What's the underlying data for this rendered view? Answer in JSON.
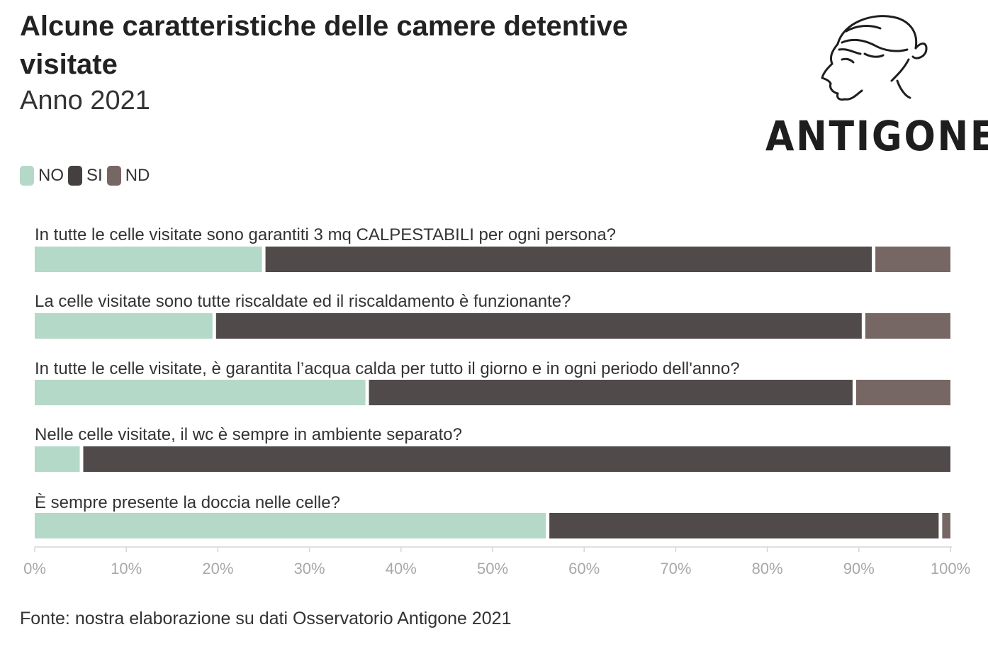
{
  "header": {
    "title": "Alcune caratteristiche delle camere detentive visitate",
    "subtitle": "Anno 2021"
  },
  "logo": {
    "text": "ANTIGONE"
  },
  "legend": [
    {
      "label": "NO",
      "color": "#b4d9c8"
    },
    {
      "label": "SI",
      "color": "#454040"
    },
    {
      "label": "ND",
      "color": "#776764"
    }
  ],
  "source": "Fonte: nostra elaborazione su dati Osservatorio Antigone 2021",
  "chart_data": {
    "type": "bar",
    "orientation": "horizontal",
    "stacked": true,
    "title": "Alcune caratteristiche delle camere detentive visitate",
    "subtitle": "Anno 2021",
    "categories": [
      "In tutte le celle visitate sono garantiti 3 mq CALPESTABILI per ogni persona?",
      "La celle visitate sono tutte riscaldate ed il riscaldamento è funzionante?",
      "In tutte le celle visitate, è garantita l’acqua calda per tutto il giorno e in ogni periodo dell'anno?",
      "Nelle celle visitate, il wc è sempre in ambiente separato?",
      "È sempre presente la doccia nelle celle?"
    ],
    "series": [
      {
        "name": "NO",
        "color": "#b4d9c8",
        "values": [
          25.2,
          19.8,
          36.5,
          5.3,
          56.2
        ]
      },
      {
        "name": "SI",
        "color": "#504a4a",
        "values": [
          66.6,
          70.9,
          53.2,
          94.7,
          42.9
        ]
      },
      {
        "name": "ND",
        "color": "#776764",
        "values": [
          8.2,
          9.3,
          10.3,
          0.0,
          0.9
        ]
      }
    ],
    "xlim": [
      0,
      100
    ],
    "xticks": [
      0,
      10,
      20,
      30,
      40,
      50,
      60,
      70,
      80,
      90,
      100
    ],
    "xtick_labels": [
      "0%",
      "10%",
      "20%",
      "30%",
      "40%",
      "50%",
      "60%",
      "70%",
      "80%",
      "90%",
      "100%"
    ],
    "xlabel": "",
    "ylabel": "",
    "legend_position": "top-left",
    "grid": false
  }
}
